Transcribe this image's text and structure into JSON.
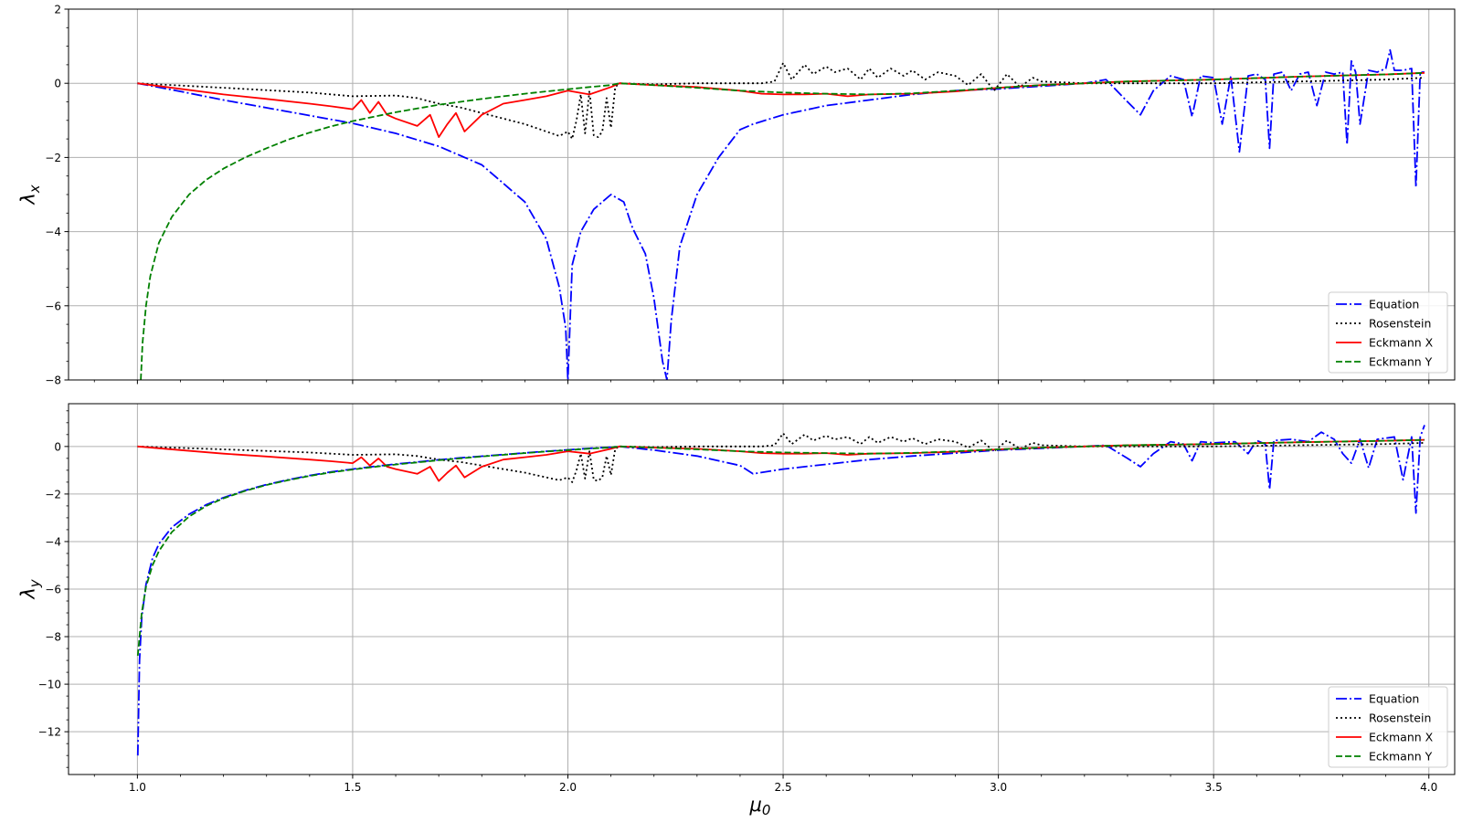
{
  "xlabel": "μ0",
  "chart_data": [
    {
      "type": "line",
      "title": "",
      "xlabel": "μ0",
      "ylabel": "λx",
      "xlim": [
        0.84,
        4.06
      ],
      "ylim": [
        -8,
        2
      ],
      "xticks": [
        1.0,
        1.5,
        2.0,
        2.5,
        3.0,
        3.5,
        4.0
      ],
      "xtick_labels": [
        "1.0",
        "1.5",
        "2.0",
        "2.5",
        "3.0",
        "3.5",
        "4.0"
      ],
      "yticks": [
        -8,
        -6,
        -4,
        -2,
        0,
        2
      ],
      "ytick_labels": [
        "−8",
        "−6",
        "−4",
        "−2",
        "0",
        "2"
      ],
      "grid": true,
      "legend_position": "lower right",
      "series": [
        {
          "name": "Equation",
          "color": "#0000ff",
          "dash": "dashdot",
          "x": [
            1.0,
            1.1,
            1.2,
            1.3,
            1.4,
            1.5,
            1.6,
            1.7,
            1.8,
            1.9,
            1.95,
            1.98,
            1.995,
            2.0,
            2.01,
            2.03,
            2.06,
            2.1,
            2.13,
            2.15,
            2.18,
            2.2,
            2.22,
            2.23,
            2.24,
            2.26,
            2.3,
            2.35,
            2.4,
            2.43,
            2.5,
            2.6,
            2.7,
            2.8,
            2.9,
            3.0,
            3.1,
            3.2,
            3.25,
            3.3,
            3.33,
            3.36,
            3.4,
            3.43,
            3.45,
            3.47,
            3.5,
            3.52,
            3.54,
            3.56,
            3.58,
            3.6,
            3.62,
            3.63,
            3.64,
            3.66,
            3.68,
            3.7,
            3.72,
            3.74,
            3.76,
            3.78,
            3.8,
            3.81,
            3.82,
            3.83,
            3.84,
            3.86,
            3.88,
            3.9,
            3.91,
            3.92,
            3.94,
            3.96,
            3.97,
            3.98,
            3.99
          ],
          "y": [
            0,
            -0.22,
            -0.45,
            -0.66,
            -0.87,
            -1.08,
            -1.35,
            -1.7,
            -2.2,
            -3.2,
            -4.2,
            -5.5,
            -6.6,
            -8.0,
            -4.9,
            -4.0,
            -3.4,
            -3.0,
            -3.2,
            -3.9,
            -4.6,
            -5.8,
            -7.5,
            -8.0,
            -6.4,
            -4.4,
            -3.0,
            -2.0,
            -1.25,
            -1.1,
            -0.85,
            -0.6,
            -0.45,
            -0.3,
            -0.2,
            -0.15,
            -0.08,
            0.0,
            0.1,
            -0.5,
            -0.85,
            -0.2,
            0.2,
            0.1,
            -0.9,
            0.2,
            0.15,
            -1.1,
            0.2,
            -1.85,
            0.2,
            0.25,
            0.1,
            -1.75,
            0.25,
            0.3,
            -0.2,
            0.25,
            0.3,
            -0.6,
            0.3,
            0.25,
            0.3,
            -1.65,
            0.6,
            0.3,
            -1.1,
            0.35,
            0.3,
            0.4,
            0.9,
            0.35,
            0.35,
            0.4,
            -2.8,
            0.3,
            0.3
          ]
        },
        {
          "name": "Rosenstein",
          "color": "#000000",
          "dash": "dotted",
          "x": [
            1.0,
            1.2,
            1.4,
            1.5,
            1.6,
            1.65,
            1.7,
            1.75,
            1.8,
            1.85,
            1.9,
            1.95,
            1.98,
            2.0,
            2.01,
            2.02,
            2.03,
            2.04,
            2.05,
            2.06,
            2.07,
            2.08,
            2.09,
            2.1,
            2.11,
            2.12,
            2.2,
            2.3,
            2.4,
            2.45,
            2.48,
            2.5,
            2.52,
            2.55,
            2.57,
            2.6,
            2.62,
            2.65,
            2.68,
            2.7,
            2.72,
            2.75,
            2.78,
            2.8,
            2.83,
            2.86,
            2.9,
            2.93,
            2.96,
            2.99,
            3.02,
            3.05,
            3.08,
            3.1,
            3.2,
            3.3,
            3.5,
            3.7,
            3.9,
            3.99
          ],
          "y": [
            0,
            -0.12,
            -0.25,
            -0.35,
            -0.33,
            -0.4,
            -0.55,
            -0.65,
            -0.8,
            -0.95,
            -1.1,
            -1.3,
            -1.42,
            -1.3,
            -1.5,
            -1.0,
            -0.3,
            -1.35,
            -0.2,
            -1.4,
            -1.45,
            -1.3,
            -0.4,
            -1.2,
            -0.1,
            0.0,
            -0.03,
            0.0,
            0.0,
            0.0,
            0.05,
            0.55,
            0.1,
            0.5,
            0.25,
            0.45,
            0.3,
            0.4,
            0.1,
            0.4,
            0.15,
            0.4,
            0.2,
            0.35,
            0.1,
            0.3,
            0.2,
            -0.05,
            0.25,
            -0.2,
            0.25,
            -0.1,
            0.15,
            0.05,
            0.0,
            0.0,
            0.0,
            0.05,
            0.1,
            0.15
          ]
        },
        {
          "name": "Eckmann X",
          "color": "#ff0000",
          "dash": "solid",
          "x": [
            1.0,
            1.1,
            1.2,
            1.3,
            1.4,
            1.45,
            1.5,
            1.52,
            1.54,
            1.56,
            1.58,
            1.6,
            1.65,
            1.68,
            1.7,
            1.72,
            1.74,
            1.76,
            1.8,
            1.85,
            1.9,
            1.95,
            2.0,
            2.05,
            2.1,
            2.12,
            2.2,
            2.3,
            2.4,
            2.45,
            2.5,
            2.55,
            2.6,
            2.65,
            2.7,
            2.8,
            2.9,
            3.0,
            3.1,
            3.2,
            3.3,
            3.5,
            3.7,
            3.9,
            3.99
          ],
          "y": [
            0,
            -0.15,
            -0.3,
            -0.42,
            -0.55,
            -0.62,
            -0.7,
            -0.45,
            -0.8,
            -0.5,
            -0.85,
            -0.95,
            -1.15,
            -0.85,
            -1.45,
            -1.1,
            -0.8,
            -1.3,
            -0.85,
            -0.55,
            -0.45,
            -0.35,
            -0.2,
            -0.3,
            -0.1,
            0.0,
            -0.05,
            -0.1,
            -0.2,
            -0.28,
            -0.3,
            -0.3,
            -0.28,
            -0.35,
            -0.3,
            -0.28,
            -0.22,
            -0.12,
            -0.05,
            0.0,
            0.05,
            0.1,
            0.18,
            0.24,
            0.28
          ]
        },
        {
          "name": "Eckmann Y",
          "color": "#008000",
          "dash": "dashed",
          "x": [
            1.008,
            1.012,
            1.02,
            1.03,
            1.05,
            1.08,
            1.12,
            1.16,
            1.2,
            1.25,
            1.3,
            1.35,
            1.4,
            1.45,
            1.5,
            1.55,
            1.6,
            1.65,
            1.7,
            1.75,
            1.8,
            1.85,
            1.9,
            1.95,
            2.0,
            2.05,
            2.1,
            2.12,
            2.2,
            2.3,
            2.4,
            2.5,
            2.6,
            2.7,
            2.8,
            2.9,
            3.0,
            3.1,
            3.2,
            3.3,
            3.5,
            3.7,
            3.9,
            3.99
          ],
          "y": [
            -8.0,
            -7.0,
            -6.0,
            -5.2,
            -4.3,
            -3.6,
            -3.0,
            -2.6,
            -2.3,
            -2.0,
            -1.75,
            -1.52,
            -1.33,
            -1.16,
            -1.02,
            -0.9,
            -0.78,
            -0.68,
            -0.58,
            -0.5,
            -0.42,
            -0.35,
            -0.28,
            -0.22,
            -0.16,
            -0.1,
            -0.05,
            0.0,
            -0.05,
            -0.12,
            -0.2,
            -0.25,
            -0.28,
            -0.3,
            -0.27,
            -0.2,
            -0.12,
            -0.05,
            0.0,
            0.05,
            0.1,
            0.18,
            0.24,
            0.28
          ]
        }
      ]
    },
    {
      "type": "line",
      "title": "",
      "xlabel": "μ0",
      "ylabel": "λy",
      "xlim": [
        0.84,
        4.06
      ],
      "ylim": [
        -13.8,
        1.8
      ],
      "xticks": [
        1.0,
        1.5,
        2.0,
        2.5,
        3.0,
        3.5,
        4.0
      ],
      "xtick_labels": [
        "1.0",
        "1.5",
        "2.0",
        "2.5",
        "3.0",
        "3.5",
        "4.0"
      ],
      "yticks": [
        -12,
        -10,
        -8,
        -6,
        -4,
        -2,
        0
      ],
      "ytick_labels": [
        "−12",
        "−10",
        "−8",
        "−6",
        "−4",
        "−2",
        "0"
      ],
      "grid": true,
      "legend_position": "lower right",
      "series": [
        {
          "name": "Equation",
          "color": "#0000ff",
          "dash": "dashdot",
          "x": [
            1.001,
            1.005,
            1.01,
            1.02,
            1.035,
            1.05,
            1.08,
            1.12,
            1.16,
            1.2,
            1.25,
            1.3,
            1.35,
            1.4,
            1.45,
            1.5,
            1.55,
            1.6,
            1.65,
            1.7,
            1.75,
            1.8,
            1.85,
            1.9,
            1.95,
            2.0,
            2.05,
            2.1,
            2.12,
            2.2,
            2.3,
            2.4,
            2.43,
            2.5,
            2.6,
            2.7,
            2.8,
            2.9,
            3.0,
            3.1,
            3.2,
            3.25,
            3.3,
            3.33,
            3.36,
            3.4,
            3.43,
            3.45,
            3.47,
            3.5,
            3.55,
            3.58,
            3.6,
            3.62,
            3.63,
            3.64,
            3.68,
            3.72,
            3.75,
            3.78,
            3.8,
            3.82,
            3.84,
            3.86,
            3.88,
            3.9,
            3.92,
            3.94,
            3.96,
            3.97,
            3.98,
            3.99
          ],
          "y": [
            -13.0,
            -9.0,
            -7.2,
            -5.8,
            -4.7,
            -4.1,
            -3.4,
            -2.85,
            -2.45,
            -2.15,
            -1.85,
            -1.6,
            -1.4,
            -1.22,
            -1.07,
            -0.95,
            -0.84,
            -0.74,
            -0.65,
            -0.56,
            -0.48,
            -0.41,
            -0.34,
            -0.27,
            -0.2,
            -0.14,
            -0.08,
            -0.03,
            0.0,
            -0.15,
            -0.4,
            -0.8,
            -1.15,
            -0.95,
            -0.75,
            -0.55,
            -0.4,
            -0.28,
            -0.15,
            -0.08,
            0.0,
            0.05,
            -0.5,
            -0.85,
            -0.3,
            0.2,
            0.1,
            -0.6,
            0.2,
            0.15,
            0.2,
            -0.3,
            0.25,
            0.1,
            -1.8,
            0.25,
            0.3,
            0.2,
            0.6,
            0.3,
            -0.3,
            -0.7,
            0.3,
            -0.9,
            0.3,
            0.35,
            0.4,
            -1.4,
            0.4,
            -2.8,
            0.4,
            0.9
          ]
        },
        {
          "name": "Rosenstein",
          "color": "#000000",
          "dash": "dotted",
          "x": [
            1.0,
            1.2,
            1.4,
            1.5,
            1.6,
            1.65,
            1.7,
            1.75,
            1.8,
            1.85,
            1.9,
            1.95,
            1.98,
            2.0,
            2.01,
            2.02,
            2.03,
            2.04,
            2.05,
            2.06,
            2.07,
            2.08,
            2.09,
            2.1,
            2.11,
            2.12,
            2.2,
            2.3,
            2.4,
            2.45,
            2.48,
            2.5,
            2.52,
            2.55,
            2.57,
            2.6,
            2.62,
            2.65,
            2.68,
            2.7,
            2.72,
            2.75,
            2.78,
            2.8,
            2.83,
            2.86,
            2.9,
            2.93,
            2.96,
            2.99,
            3.02,
            3.05,
            3.08,
            3.1,
            3.2,
            3.3,
            3.5,
            3.7,
            3.9,
            3.99
          ],
          "y": [
            0,
            -0.12,
            -0.25,
            -0.35,
            -0.33,
            -0.4,
            -0.55,
            -0.65,
            -0.8,
            -0.95,
            -1.1,
            -1.3,
            -1.42,
            -1.3,
            -1.5,
            -1.0,
            -0.3,
            -1.35,
            -0.2,
            -1.4,
            -1.45,
            -1.3,
            -0.4,
            -1.2,
            -0.1,
            0.0,
            -0.03,
            0.0,
            0.0,
            0.0,
            0.05,
            0.55,
            0.1,
            0.5,
            0.25,
            0.45,
            0.3,
            0.4,
            0.1,
            0.4,
            0.15,
            0.4,
            0.2,
            0.35,
            0.1,
            0.3,
            0.2,
            -0.05,
            0.25,
            -0.2,
            0.25,
            -0.1,
            0.15,
            0.05,
            0.0,
            0.0,
            0.0,
            0.05,
            0.1,
            0.15
          ]
        },
        {
          "name": "Eckmann X",
          "color": "#ff0000",
          "dash": "solid",
          "x": [
            1.0,
            1.1,
            1.2,
            1.3,
            1.4,
            1.45,
            1.5,
            1.52,
            1.54,
            1.56,
            1.58,
            1.6,
            1.65,
            1.68,
            1.7,
            1.72,
            1.74,
            1.76,
            1.8,
            1.85,
            1.9,
            1.95,
            2.0,
            2.05,
            2.1,
            2.12,
            2.2,
            2.3,
            2.4,
            2.45,
            2.5,
            2.55,
            2.6,
            2.65,
            2.7,
            2.8,
            2.9,
            3.0,
            3.1,
            3.2,
            3.3,
            3.5,
            3.7,
            3.9,
            3.99
          ],
          "y": [
            0,
            -0.15,
            -0.3,
            -0.42,
            -0.55,
            -0.62,
            -0.7,
            -0.45,
            -0.8,
            -0.5,
            -0.85,
            -0.95,
            -1.15,
            -0.85,
            -1.45,
            -1.1,
            -0.8,
            -1.3,
            -0.85,
            -0.55,
            -0.45,
            -0.35,
            -0.2,
            -0.3,
            -0.1,
            0.0,
            -0.05,
            -0.1,
            -0.2,
            -0.28,
            -0.3,
            -0.3,
            -0.28,
            -0.35,
            -0.3,
            -0.28,
            -0.22,
            -0.12,
            -0.05,
            0.0,
            0.05,
            0.1,
            0.18,
            0.24,
            0.28
          ]
        },
        {
          "name": "Eckmann Y",
          "color": "#008000",
          "dash": "dashed",
          "x": [
            1.001,
            1.005,
            1.01,
            1.02,
            1.035,
            1.05,
            1.08,
            1.12,
            1.16,
            1.2,
            1.25,
            1.3,
            1.35,
            1.4,
            1.45,
            1.5,
            1.55,
            1.6,
            1.65,
            1.7,
            1.75,
            1.8,
            1.85,
            1.9,
            1.95,
            2.0,
            2.05,
            2.1,
            2.12,
            2.2,
            2.3,
            2.4,
            2.5,
            2.6,
            2.7,
            2.8,
            2.9,
            3.0,
            3.1,
            3.2,
            3.3,
            3.5,
            3.7,
            3.9,
            3.99
          ],
          "y": [
            -8.8,
            -8.0,
            -7.0,
            -5.9,
            -5.0,
            -4.4,
            -3.6,
            -2.95,
            -2.5,
            -2.18,
            -1.87,
            -1.62,
            -1.42,
            -1.24,
            -1.09,
            -0.97,
            -0.86,
            -0.76,
            -0.67,
            -0.58,
            -0.5,
            -0.42,
            -0.35,
            -0.28,
            -0.21,
            -0.15,
            -0.09,
            -0.04,
            0.0,
            -0.05,
            -0.12,
            -0.2,
            -0.25,
            -0.28,
            -0.3,
            -0.27,
            -0.2,
            -0.12,
            -0.05,
            0.0,
            0.05,
            0.1,
            0.18,
            0.24,
            0.28
          ]
        }
      ]
    }
  ]
}
